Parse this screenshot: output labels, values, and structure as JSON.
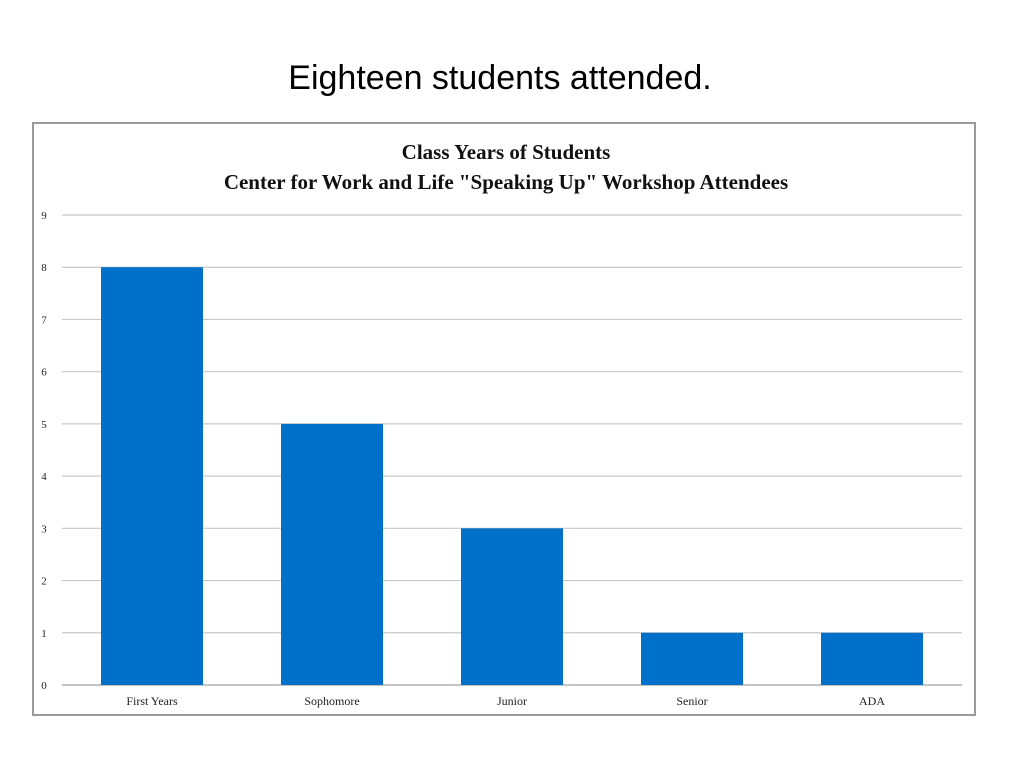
{
  "slide": {
    "heading": "Eighteen students attended."
  },
  "chart_data": {
    "type": "bar",
    "title": [
      "Class Years of Students",
      "Center for Work and Life  \"Speaking Up\" Workshop Attendees"
    ],
    "categories": [
      "First Years",
      "Sophomore",
      "Junior",
      "Senior",
      "ADA"
    ],
    "values": [
      8,
      5,
      3,
      1,
      1
    ],
    "xlabel": "",
    "ylabel": "",
    "ylim": [
      0,
      9
    ],
    "yticks": [
      0,
      1,
      2,
      3,
      4,
      5,
      6,
      7,
      8,
      9
    ],
    "grid": true,
    "legend": "none",
    "bar_color": "#0070c8"
  }
}
